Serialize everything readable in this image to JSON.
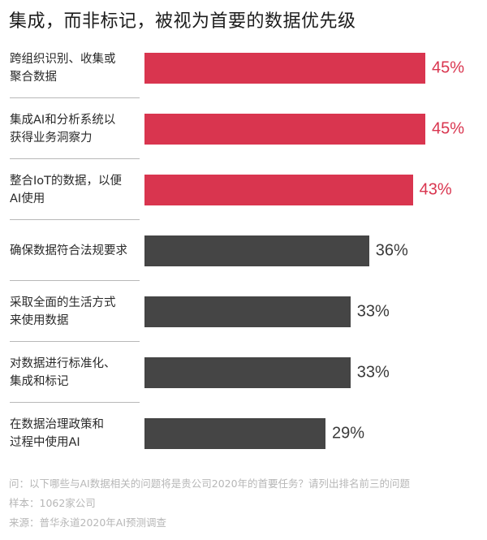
{
  "title": "集成，而非标记，被视为首要的数据优先级",
  "colors": {
    "highlight": "#d9354f",
    "normal": "#454545",
    "highlight_text": "#d9354f",
    "normal_text": "#3a3a3a"
  },
  "chart_data": {
    "type": "bar",
    "orientation": "horizontal",
    "title": "集成，而非标记，被视为首要的数据优先级",
    "xlabel": "",
    "ylabel": "",
    "xlim": [
      0,
      45
    ],
    "grid": false,
    "legend": null,
    "categories": [
      "跨组织识别、收集或聚合数据",
      "集成AI和分析系统以获得业务洞察力",
      "整合IoT的数据，以便AI使用",
      "确保数据符合法规要求",
      "采取全面的生活方式来使用数据",
      "对数据进行标准化、集成和标记",
      "在数据治理政策和过程中使用AI"
    ],
    "values": [
      45,
      45,
      43,
      36,
      33,
      33,
      29
    ],
    "unit": "%",
    "highlighted": [
      true,
      true,
      true,
      false,
      false,
      false,
      false
    ]
  },
  "rows": [
    {
      "line1": "跨组织识别、收集或",
      "line2": "聚合数据",
      "value": 45,
      "value_label": "45%",
      "highlight": true
    },
    {
      "line1": "集成AI和分析系统以",
      "line2": "获得业务洞察力",
      "value": 45,
      "value_label": "45%",
      "highlight": true
    },
    {
      "line1": "整合IoT的数据，以便",
      "line2": "AI使用",
      "value": 43,
      "value_label": "43%",
      "highlight": true
    },
    {
      "line1": "确保数据符合法规要求",
      "line2": "",
      "value": 36,
      "value_label": "36%",
      "highlight": false
    },
    {
      "line1": "采取全面的生活方式",
      "line2": "来使用数据",
      "value": 33,
      "value_label": "33%",
      "highlight": false
    },
    {
      "line1": "对数据进行标准化、",
      "line2": "集成和标记",
      "value": 33,
      "value_label": "33%",
      "highlight": false
    },
    {
      "line1": "在数据治理政策和",
      "line2": "过程中使用AI",
      "value": 29,
      "value_label": "29%",
      "highlight": false
    }
  ],
  "footnotes": {
    "question": "问：以下哪些与AI数据相关的问题将是贵公司2020年的首要任务？请列出排名前三的问题",
    "sample": "样本：1062家公司",
    "source": "来源：普华永道2020年AI预测调查"
  }
}
